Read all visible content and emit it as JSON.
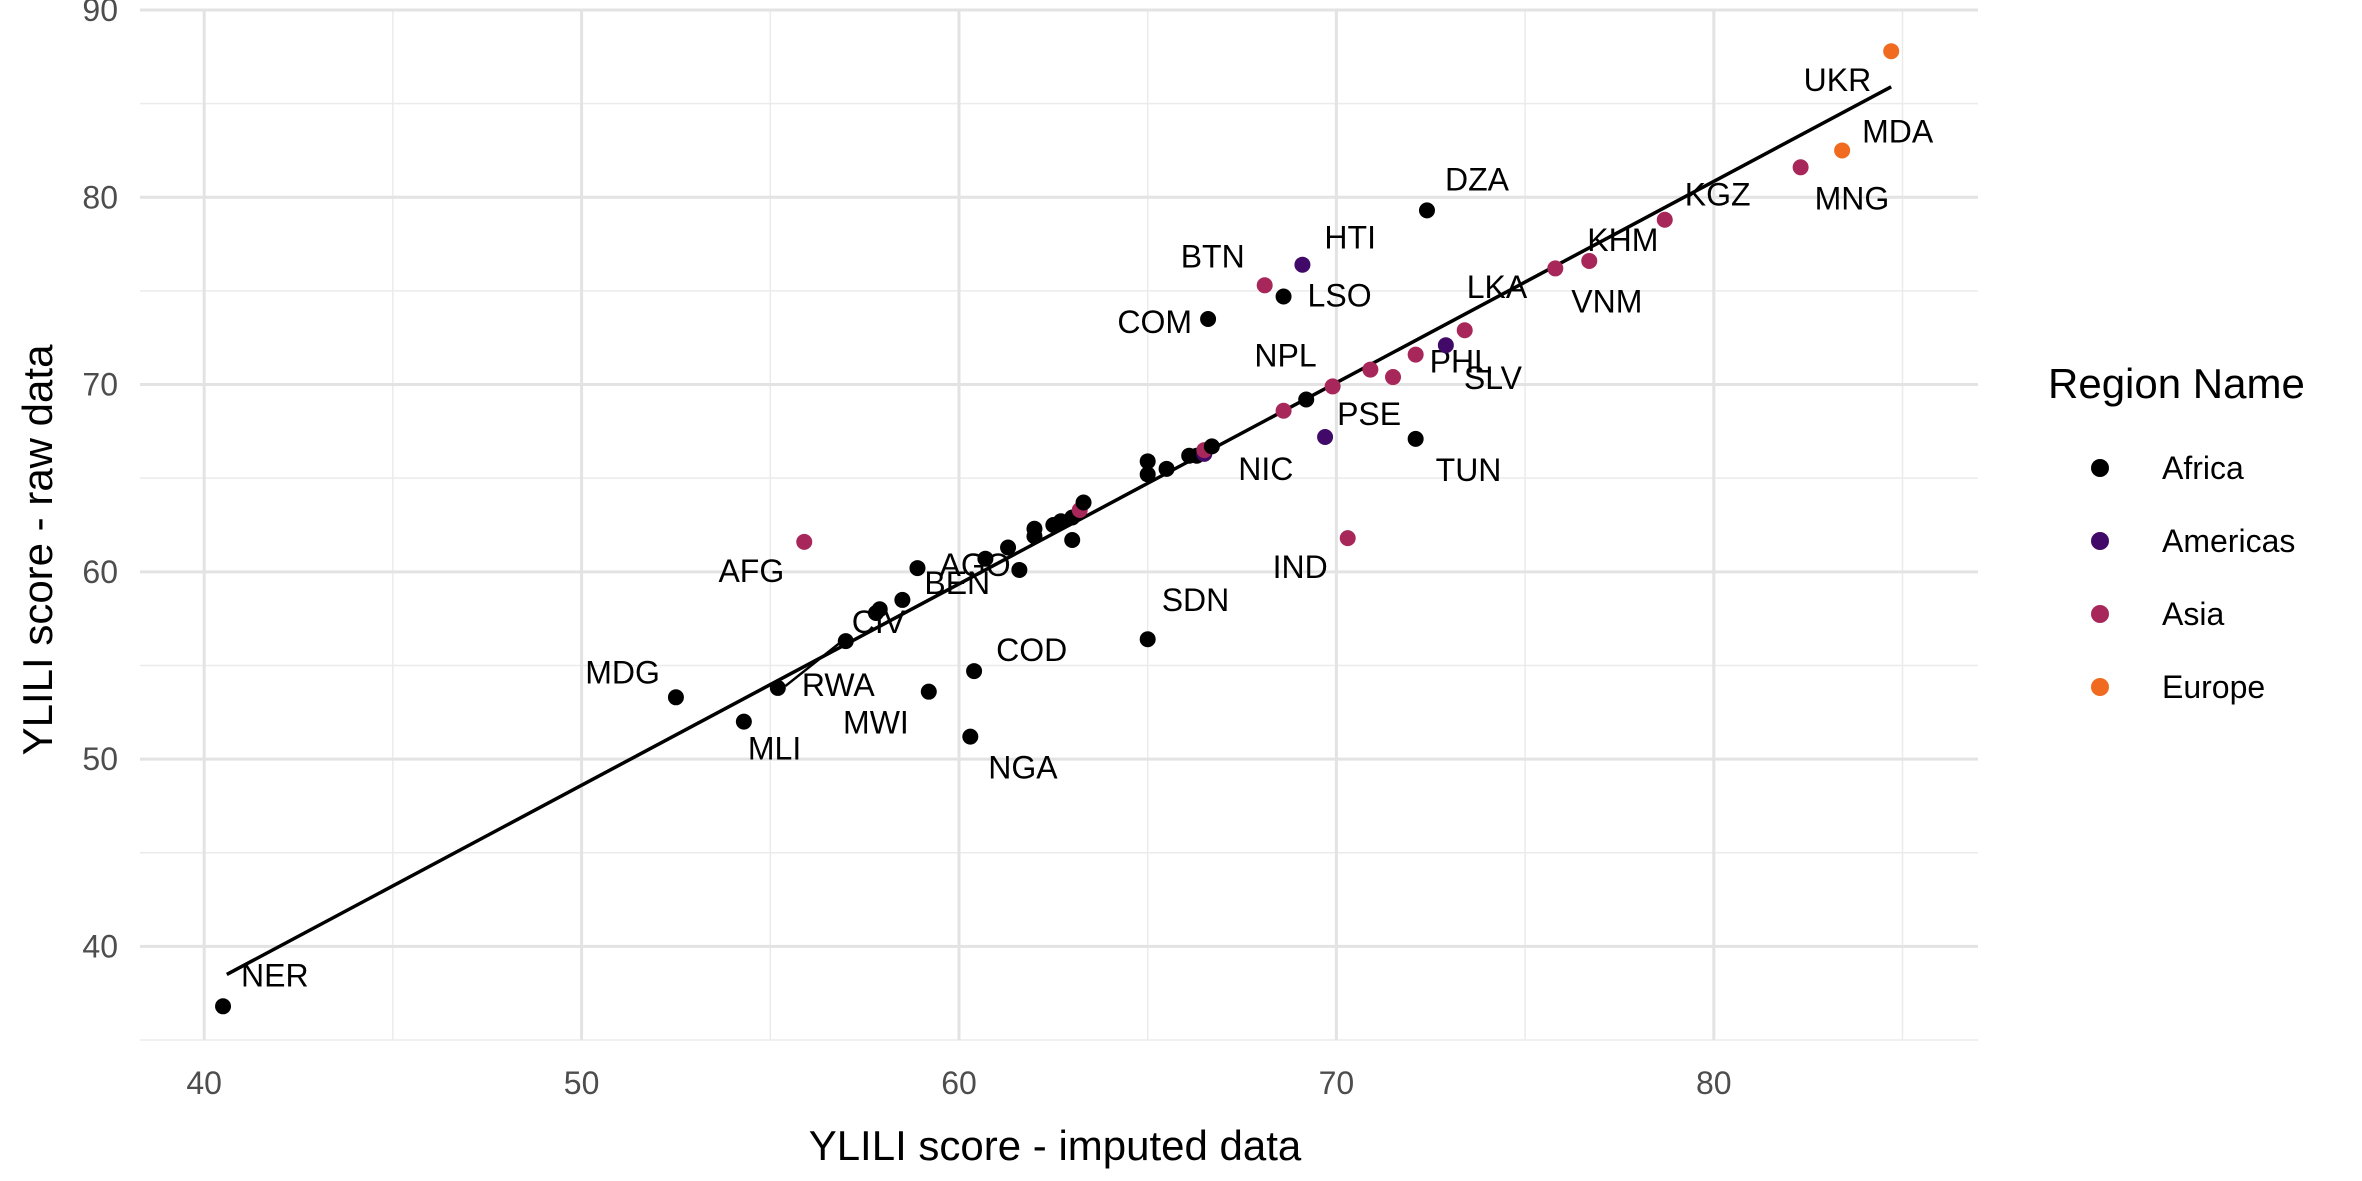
{
  "chart_data": {
    "type": "scatter",
    "title": "",
    "xlabel": "YLILI score - imputed data",
    "ylabel": "YLILI score - raw data",
    "xlim": [
      38.3,
      87.0
    ],
    "ylim": [
      35.0,
      90.0
    ],
    "x_ticks": [
      40,
      50,
      60,
      70,
      80
    ],
    "y_ticks": [
      40,
      50,
      60,
      70,
      80,
      90
    ],
    "grid": true,
    "legend": {
      "title": "Region Name",
      "position": "right",
      "entries": [
        {
          "name": "Africa",
          "color": "#000000"
        },
        {
          "name": "Americas",
          "color": "#420a68"
        },
        {
          "name": "Asia",
          "color": "#a8275a"
        },
        {
          "name": "Europe",
          "color": "#f06a20"
        }
      ]
    },
    "trendline": {
      "x": [
        40.6,
        84.7
      ],
      "y": [
        38.5,
        85.9
      ],
      "color": "#000000"
    },
    "points": [
      {
        "label": "NER",
        "x": 40.5,
        "y": 36.8,
        "region": "Africa"
      },
      {
        "label": "MDG",
        "x": 52.5,
        "y": 53.3,
        "region": "Africa"
      },
      {
        "label": "MLI",
        "x": 54.3,
        "y": 52.0,
        "region": "Africa"
      },
      {
        "label": "RWA",
        "x": 55.2,
        "y": 53.8,
        "region": "Africa"
      },
      {
        "label": "CIV",
        "x": 57.0,
        "y": 56.3,
        "region": "Africa"
      },
      {
        "label": "AFG",
        "x": 55.9,
        "y": 61.6,
        "region": "Asia"
      },
      {
        "label": "AGO",
        "x": 58.9,
        "y": 60.2,
        "region": "Africa"
      },
      {
        "label": "BEN",
        "x": 58.5,
        "y": 58.5,
        "region": "Africa"
      },
      {
        "label": "",
        "x": 57.8,
        "y": 57.8,
        "region": "Africa"
      },
      {
        "label": "",
        "x": 57.9,
        "y": 58.0,
        "region": "Africa"
      },
      {
        "label": "MWI",
        "x": 59.2,
        "y": 53.6,
        "region": "Africa"
      },
      {
        "label": "NGA",
        "x": 60.3,
        "y": 51.2,
        "region": "Africa"
      },
      {
        "label": "COD",
        "x": 60.4,
        "y": 54.7,
        "region": "Africa"
      },
      {
        "label": "",
        "x": 60.7,
        "y": 60.7,
        "region": "Africa"
      },
      {
        "label": "",
        "x": 61.3,
        "y": 61.3,
        "region": "Africa"
      },
      {
        "label": "",
        "x": 61.6,
        "y": 60.1,
        "region": "Africa"
      },
      {
        "label": "",
        "x": 62.0,
        "y": 62.3,
        "region": "Africa"
      },
      {
        "label": "",
        "x": 62.0,
        "y": 61.9,
        "region": "Africa"
      },
      {
        "label": "",
        "x": 62.5,
        "y": 62.5,
        "region": "Africa"
      },
      {
        "label": "",
        "x": 62.7,
        "y": 62.7,
        "region": "Africa"
      },
      {
        "label": "",
        "x": 63.0,
        "y": 62.9,
        "region": "Africa"
      },
      {
        "label": "",
        "x": 63.0,
        "y": 61.7,
        "region": "Africa"
      },
      {
        "label": "",
        "x": 63.2,
        "y": 63.3,
        "region": "Asia"
      },
      {
        "label": "",
        "x": 63.3,
        "y": 63.7,
        "region": "Africa"
      },
      {
        "label": "SDN",
        "x": 65.0,
        "y": 56.4,
        "region": "Africa"
      },
      {
        "label": "",
        "x": 65.0,
        "y": 65.2,
        "region": "Africa"
      },
      {
        "label": "",
        "x": 65.0,
        "y": 65.9,
        "region": "Africa"
      },
      {
        "label": "",
        "x": 65.5,
        "y": 65.5,
        "region": "Africa"
      },
      {
        "label": "",
        "x": 66.1,
        "y": 66.2,
        "region": "Africa"
      },
      {
        "label": "",
        "x": 66.3,
        "y": 66.2,
        "region": "Africa"
      },
      {
        "label": "NIC",
        "x": 66.5,
        "y": 66.3,
        "region": "Americas"
      },
      {
        "label": "",
        "x": 66.5,
        "y": 66.5,
        "region": "Asia"
      },
      {
        "label": "",
        "x": 66.7,
        "y": 66.7,
        "region": "Africa"
      },
      {
        "label": "COM",
        "x": 66.6,
        "y": 73.5,
        "region": "Africa"
      },
      {
        "label": "BTN",
        "x": 68.1,
        "y": 75.3,
        "region": "Asia"
      },
      {
        "label": "LSO",
        "x": 68.6,
        "y": 74.7,
        "region": "Africa"
      },
      {
        "label": "HTI",
        "x": 69.1,
        "y": 76.4,
        "region": "Americas"
      },
      {
        "label": "",
        "x": 68.6,
        "y": 68.6,
        "region": "Asia"
      },
      {
        "label": "",
        "x": 69.2,
        "y": 69.2,
        "region": "Africa"
      },
      {
        "label": "PSE",
        "x": 69.7,
        "y": 67.2,
        "region": "Americas"
      },
      {
        "label": "NPL",
        "x": 69.9,
        "y": 69.9,
        "region": "Asia"
      },
      {
        "label": "IND",
        "x": 70.3,
        "y": 61.8,
        "region": "Asia"
      },
      {
        "label": "",
        "x": 70.9,
        "y": 70.8,
        "region": "Asia"
      },
      {
        "label": "",
        "x": 71.5,
        "y": 70.4,
        "region": "Asia"
      },
      {
        "label": "PHL",
        "x": 72.1,
        "y": 71.6,
        "region": "Asia"
      },
      {
        "label": "TUN",
        "x": 72.1,
        "y": 67.1,
        "region": "Africa"
      },
      {
        "label": "DZA",
        "x": 72.4,
        "y": 79.3,
        "region": "Africa"
      },
      {
        "label": "SLV",
        "x": 72.9,
        "y": 72.1,
        "region": "Americas"
      },
      {
        "label": "LKA",
        "x": 73.4,
        "y": 72.9,
        "region": "Asia"
      },
      {
        "label": "VNM",
        "x": 75.8,
        "y": 76.2,
        "region": "Asia"
      },
      {
        "label": "KHM",
        "x": 76.7,
        "y": 76.6,
        "region": "Asia"
      },
      {
        "label": "KGZ",
        "x": 78.7,
        "y": 78.8,
        "region": "Asia"
      },
      {
        "label": "MNG",
        "x": 82.3,
        "y": 81.6,
        "region": "Asia"
      },
      {
        "label": "MDA",
        "x": 83.4,
        "y": 82.5,
        "region": "Europe"
      },
      {
        "label": "UKR",
        "x": 84.7,
        "y": 87.8,
        "region": "Europe"
      }
    ]
  }
}
